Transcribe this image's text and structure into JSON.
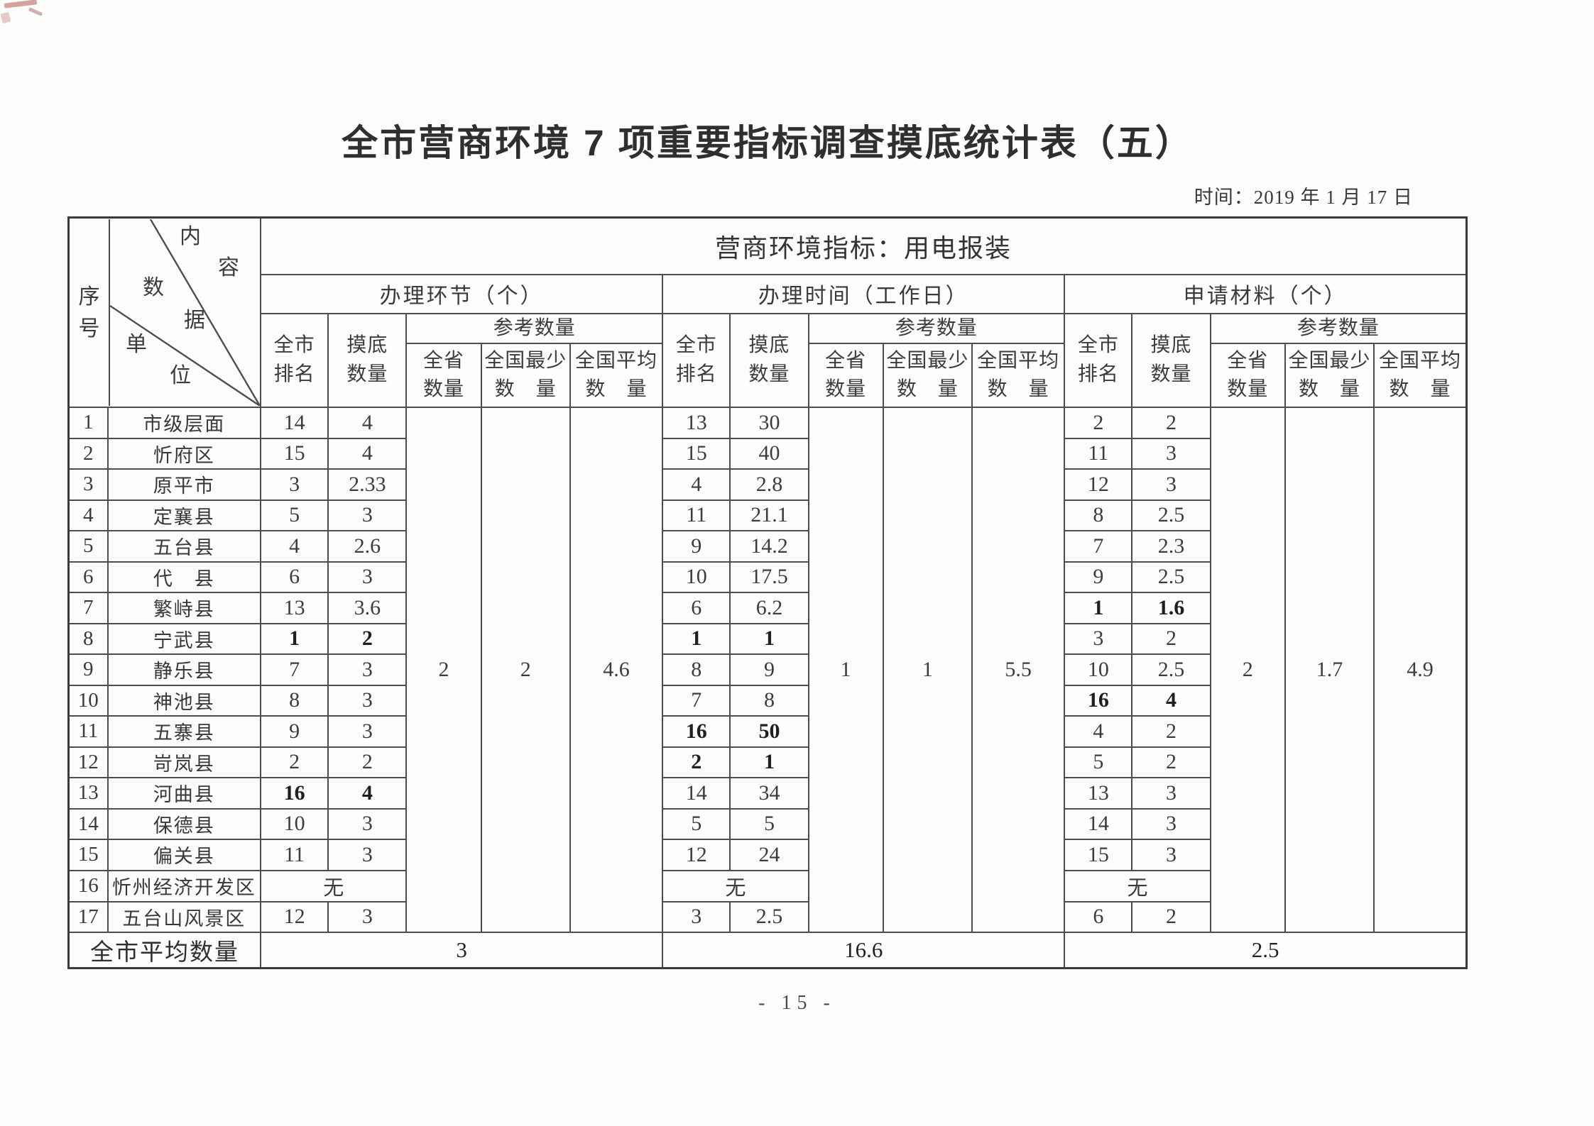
{
  "page": {
    "title": "全市营商环境 7 项重要指标调查摸底统计表（五）",
    "date_line": "时间：2019 年 1 月 17 日",
    "page_number": "- 15 -"
  },
  "table": {
    "indicator_header": "营商环境指标：用电报装",
    "corner": {
      "row_axis": "序号",
      "diag_chars": [
        "内",
        "容",
        "数",
        "据",
        "单",
        "位"
      ]
    },
    "sub_headers": {
      "rank": "全市\n排名",
      "survey": "摸底\n数量",
      "reference": "参考数量",
      "province": "全省\n数量",
      "national_min": "全国最少\n数　量",
      "national_avg": "全国平均\n数　量"
    },
    "none_text": "无",
    "average_label": "全市平均数量",
    "sections": [
      {
        "title": "办理环节（个）",
        "ref": {
          "province": "2",
          "national_min": "2",
          "national_avg": "4.6"
        },
        "average": "3"
      },
      {
        "title": "办理时间（工作日）",
        "ref": {
          "province": "1",
          "national_min": "1",
          "national_avg": "5.5"
        },
        "average": "16.6"
      },
      {
        "title": "申请材料（个）",
        "ref": {
          "province": "2",
          "national_min": "1.7",
          "national_avg": "4.9"
        },
        "average": "2.5"
      }
    ],
    "rows": [
      {
        "no": "1",
        "name": "市级层面",
        "s": [
          {
            "r": "14",
            "c": "4"
          },
          {
            "r": "13",
            "c": "30"
          },
          {
            "r": "2",
            "c": "2"
          }
        ]
      },
      {
        "no": "2",
        "name": "忻府区",
        "s": [
          {
            "r": "15",
            "c": "4"
          },
          {
            "r": "15",
            "c": "40"
          },
          {
            "r": "11",
            "c": "3"
          }
        ]
      },
      {
        "no": "3",
        "name": "原平市",
        "s": [
          {
            "r": "3",
            "c": "2.33"
          },
          {
            "r": "4",
            "c": "2.8"
          },
          {
            "r": "12",
            "c": "3"
          }
        ]
      },
      {
        "no": "4",
        "name": "定襄县",
        "s": [
          {
            "r": "5",
            "c": "3"
          },
          {
            "r": "11",
            "c": "21.1"
          },
          {
            "r": "8",
            "c": "2.5"
          }
        ]
      },
      {
        "no": "5",
        "name": "五台县",
        "s": [
          {
            "r": "4",
            "c": "2.6"
          },
          {
            "r": "9",
            "c": "14.2"
          },
          {
            "r": "7",
            "c": "2.3"
          }
        ]
      },
      {
        "no": "6",
        "name": "代　县",
        "s": [
          {
            "r": "6",
            "c": "3"
          },
          {
            "r": "10",
            "c": "17.5"
          },
          {
            "r": "9",
            "c": "2.5"
          }
        ]
      },
      {
        "no": "7",
        "name": "繁峙县",
        "s": [
          {
            "r": "13",
            "c": "3.6"
          },
          {
            "r": "6",
            "c": "6.2"
          },
          {
            "r": "1",
            "c": "1.6",
            "rb": true,
            "cb": true
          }
        ]
      },
      {
        "no": "8",
        "name": "宁武县",
        "s": [
          {
            "r": "1",
            "c": "2",
            "rb": true,
            "cb": true
          },
          {
            "r": "1",
            "c": "1",
            "rb": true,
            "cb": true
          },
          {
            "r": "3",
            "c": "2"
          }
        ]
      },
      {
        "no": "9",
        "name": "静乐县",
        "s": [
          {
            "r": "7",
            "c": "3"
          },
          {
            "r": "8",
            "c": "9"
          },
          {
            "r": "10",
            "c": "2.5"
          }
        ]
      },
      {
        "no": "10",
        "name": "神池县",
        "s": [
          {
            "r": "8",
            "c": "3"
          },
          {
            "r": "7",
            "c": "8"
          },
          {
            "r": "16",
            "c": "4",
            "rb": true,
            "cb": true
          }
        ]
      },
      {
        "no": "11",
        "name": "五寨县",
        "s": [
          {
            "r": "9",
            "c": "3"
          },
          {
            "r": "16",
            "c": "50",
            "rb": true,
            "cb": true
          },
          {
            "r": "4",
            "c": "2"
          }
        ]
      },
      {
        "no": "12",
        "name": "岢岚县",
        "s": [
          {
            "r": "2",
            "c": "2"
          },
          {
            "r": "2",
            "c": "1",
            "rb": true,
            "cb": true
          },
          {
            "r": "5",
            "c": "2"
          }
        ]
      },
      {
        "no": "13",
        "name": "河曲县",
        "s": [
          {
            "r": "16",
            "c": "4",
            "rb": true,
            "cb": true
          },
          {
            "r": "14",
            "c": "34"
          },
          {
            "r": "13",
            "c": "3"
          }
        ]
      },
      {
        "no": "14",
        "name": "保德县",
        "s": [
          {
            "r": "10",
            "c": "3"
          },
          {
            "r": "5",
            "c": "5"
          },
          {
            "r": "14",
            "c": "3"
          }
        ]
      },
      {
        "no": "15",
        "name": "偏关县",
        "s": [
          {
            "r": "11",
            "c": "3"
          },
          {
            "r": "12",
            "c": "24"
          },
          {
            "r": "15",
            "c": "3"
          }
        ]
      },
      {
        "no": "16",
        "name": "忻州经济开发区",
        "none": true
      },
      {
        "no": "17",
        "name": "五台山风景区",
        "s": [
          {
            "r": "12",
            "c": "3"
          },
          {
            "r": "3",
            "c": "2.5"
          },
          {
            "r": "6",
            "c": "2"
          }
        ]
      }
    ]
  }
}
